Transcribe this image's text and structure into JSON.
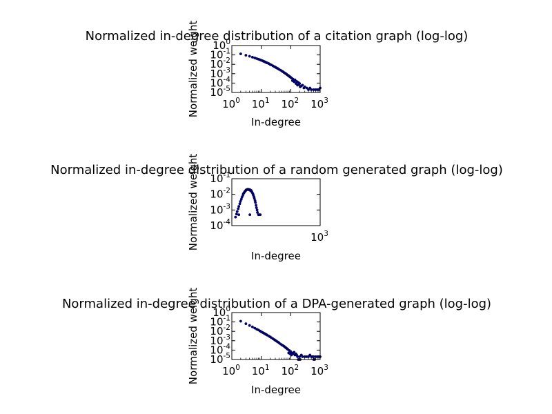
{
  "figure": {
    "background": "#ffffff",
    "marker_color": "#000080"
  },
  "chart_data": [
    {
      "type": "scatter",
      "title": "Normalized in-degree distribution of a citation graph (log-log)",
      "xlabel": "In-degree",
      "ylabel": "Normalized weight",
      "xscale": "log",
      "yscale": "log",
      "xlim": [
        1,
        1000
      ],
      "ylim": [
        1e-05,
        1
      ],
      "x_ticks": [
        {
          "base": "10",
          "exp": "0",
          "value": 1
        },
        {
          "base": "10",
          "exp": "1",
          "value": 10
        },
        {
          "base": "10",
          "exp": "2",
          "value": 100
        },
        {
          "base": "10",
          "exp": "3",
          "value": 1000
        }
      ],
      "y_ticks": [
        {
          "base": "10",
          "exp": "0",
          "value": 1
        },
        {
          "base": "10",
          "exp": "-1",
          "value": 0.1
        },
        {
          "base": "10",
          "exp": "-2",
          "value": 0.01
        },
        {
          "base": "10",
          "exp": "-3",
          "value": 0.001
        },
        {
          "base": "10",
          "exp": "-4",
          "value": 0.0001
        },
        {
          "base": "10",
          "exp": "-5",
          "value": 1e-05
        }
      ],
      "grid": false,
      "points": [
        [
          2,
          0.13
        ],
        [
          3,
          0.092
        ],
        [
          4,
          0.072
        ],
        [
          5,
          0.058
        ],
        [
          6,
          0.048
        ],
        [
          7,
          0.041
        ],
        [
          8,
          0.035
        ],
        [
          9,
          0.031
        ],
        [
          10,
          0.027
        ],
        [
          11,
          0.024
        ],
        [
          12,
          0.021
        ],
        [
          13,
          0.019
        ],
        [
          14,
          0.017
        ],
        [
          15,
          0.015
        ],
        [
          16,
          0.014
        ],
        [
          18,
          0.012
        ],
        [
          20,
          0.0098
        ],
        [
          22,
          0.0085
        ],
        [
          25,
          0.0068
        ],
        [
          28,
          0.0056
        ],
        [
          30,
          0.005
        ],
        [
          33,
          0.0042
        ],
        [
          36,
          0.0036
        ],
        [
          40,
          0.0029
        ],
        [
          45,
          0.0024
        ],
        [
          50,
          0.0019
        ],
        [
          55,
          0.0016
        ],
        [
          60,
          0.0013
        ],
        [
          65,
          0.0011
        ],
        [
          70,
          0.00095
        ],
        [
          75,
          0.0008
        ],
        [
          80,
          0.00068
        ],
        [
          85,
          0.0006
        ],
        [
          90,
          0.00052
        ],
        [
          95,
          0.00046
        ],
        [
          100,
          0.0004
        ],
        [
          110,
          0.00032
        ],
        [
          115,
          0.00018
        ],
        [
          120,
          0.00026
        ],
        [
          130,
          0.00014
        ],
        [
          140,
          0.00022
        ],
        [
          150,
          9e-05
        ],
        [
          160,
          0.00015
        ],
        [
          170,
          6e-05
        ],
        [
          180,
          0.00012
        ],
        [
          190,
          7e-05
        ],
        [
          200,
          9e-05
        ],
        [
          210,
          4e-05
        ],
        [
          230,
          5e-05
        ],
        [
          250,
          6e-05
        ],
        [
          280,
          3e-05
        ],
        [
          300,
          4e-05
        ],
        [
          350,
          3e-05
        ],
        [
          400,
          2e-05
        ],
        [
          450,
          3e-05
        ],
        [
          500,
          2e-05
        ],
        [
          600,
          2e-05
        ],
        [
          700,
          2e-05
        ],
        [
          800,
          2e-05
        ],
        [
          900,
          2e-05
        ],
        [
          1000,
          3e-05
        ]
      ]
    },
    {
      "type": "scatter",
      "title": "Normalized in-degree distribution of a random generated graph (log-log)",
      "xlabel": "In-degree",
      "ylabel": "Normalized weight",
      "xscale": "log",
      "yscale": "log",
      "xlim": [
        100,
        1000
      ],
      "ylim": [
        0.0001,
        0.1
      ],
      "x_ticks": [
        {
          "base": "10",
          "exp": "3",
          "value": 1000
        }
      ],
      "y_ticks": [
        {
          "base": "10",
          "exp": "-1",
          "value": 0.1
        },
        {
          "base": "10",
          "exp": "-2",
          "value": 0.01
        },
        {
          "base": "10",
          "exp": "-3",
          "value": 0.001
        },
        {
          "base": "10",
          "exp": "-4",
          "value": 0.0001
        }
      ],
      "grid": false,
      "points": [
        [
          110,
          0.00035
        ],
        [
          113,
          0.00055
        ],
        [
          115,
          0.0008
        ],
        [
          118,
          0.0012
        ],
        [
          120,
          0.0017
        ],
        [
          123,
          0.0025
        ],
        [
          125,
          0.0035
        ],
        [
          128,
          0.0048
        ],
        [
          130,
          0.0065
        ],
        [
          133,
          0.0085
        ],
        [
          135,
          0.011
        ],
        [
          138,
          0.013
        ],
        [
          140,
          0.015
        ],
        [
          143,
          0.017
        ],
        [
          145,
          0.019
        ],
        [
          148,
          0.02
        ],
        [
          150,
          0.021
        ],
        [
          152,
          0.02
        ],
        [
          155,
          0.021
        ],
        [
          158,
          0.019
        ],
        [
          160,
          0.02
        ],
        [
          163,
          0.017
        ],
        [
          165,
          0.018
        ],
        [
          168,
          0.015
        ],
        [
          170,
          0.013
        ],
        [
          173,
          0.011
        ],
        [
          175,
          0.009
        ],
        [
          178,
          0.007
        ],
        [
          180,
          0.0055
        ],
        [
          183,
          0.004
        ],
        [
          185,
          0.003
        ],
        [
          188,
          0.002
        ],
        [
          190,
          0.0014
        ],
        [
          193,
          0.001
        ],
        [
          195,
          0.0007
        ],
        [
          200,
          0.0005
        ],
        [
          205,
          0.0005
        ],
        [
          210,
          0.0005
        ],
        [
          120,
          0.0005
        ],
        [
          160,
          0.0005
        ]
      ]
    },
    {
      "type": "scatter",
      "title": "Normalized in-degree distribution of a DPA-generated graph (log-log)",
      "xlabel": "In-degree",
      "ylabel": "Normalized weight",
      "xscale": "log",
      "yscale": "log",
      "xlim": [
        1,
        1000
      ],
      "ylim": [
        1e-05,
        1
      ],
      "x_ticks": [
        {
          "base": "10",
          "exp": "0",
          "value": 1
        },
        {
          "base": "10",
          "exp": "1",
          "value": 10
        },
        {
          "base": "10",
          "exp": "2",
          "value": 100
        },
        {
          "base": "10",
          "exp": "3",
          "value": 1000
        }
      ],
      "y_ticks": [
        {
          "base": "10",
          "exp": "0",
          "value": 1
        },
        {
          "base": "10",
          "exp": "-1",
          "value": 0.1
        },
        {
          "base": "10",
          "exp": "-2",
          "value": 0.01
        },
        {
          "base": "10",
          "exp": "-3",
          "value": 0.001
        },
        {
          "base": "10",
          "exp": "-4",
          "value": 0.0001
        },
        {
          "base": "10",
          "exp": "-5",
          "value": 1e-05
        }
      ],
      "grid": false,
      "points": [
        [
          2,
          0.12
        ],
        [
          3,
          0.065
        ],
        [
          4,
          0.042
        ],
        [
          5,
          0.03
        ],
        [
          6,
          0.022
        ],
        [
          7,
          0.017
        ],
        [
          8,
          0.014
        ],
        [
          9,
          0.011
        ],
        [
          10,
          0.009
        ],
        [
          11,
          0.0077
        ],
        [
          12,
          0.0066
        ],
        [
          13,
          0.0057
        ],
        [
          14,
          0.005
        ],
        [
          15,
          0.0044
        ],
        [
          16,
          0.0039
        ],
        [
          18,
          0.0031
        ],
        [
          20,
          0.0026
        ],
        [
          22,
          0.0021
        ],
        [
          25,
          0.0016
        ],
        [
          28,
          0.0013
        ],
        [
          30,
          0.0011
        ],
        [
          33,
          0.0009
        ],
        [
          36,
          0.00075
        ],
        [
          40,
          0.0006
        ],
        [
          45,
          0.00045
        ],
        [
          50,
          0.00035
        ],
        [
          55,
          0.0003
        ],
        [
          60,
          0.00025
        ],
        [
          65,
          0.0002
        ],
        [
          70,
          0.00017
        ],
        [
          75,
          0.00014
        ],
        [
          80,
          0.00012
        ],
        [
          90,
          9e-05
        ],
        [
          100,
          7e-05
        ],
        [
          110,
          5e-05
        ],
        [
          120,
          4e-05
        ],
        [
          130,
          6e-05
        ],
        [
          140,
          3e-05
        ],
        [
          150,
          4e-05
        ],
        [
          160,
          3e-05
        ],
        [
          170,
          2e-05
        ],
        [
          200,
          2e-05
        ],
        [
          230,
          3e-05
        ],
        [
          250,
          2e-05
        ],
        [
          300,
          2e-05
        ],
        [
          350,
          2e-05
        ],
        [
          400,
          2e-05
        ],
        [
          450,
          3e-05
        ],
        [
          500,
          2e-05
        ],
        [
          550,
          2e-05
        ],
        [
          600,
          2e-05
        ],
        [
          700,
          2e-05
        ],
        [
          800,
          2e-05
        ],
        [
          900,
          2e-05
        ],
        [
          1000,
          2e-05
        ],
        [
          85,
          5e-05
        ],
        [
          95,
          4e-05
        ],
        [
          105,
          3e-05
        ],
        [
          180,
          1e-05
        ],
        [
          190,
          1e-05
        ],
        [
          210,
          1e-05
        ],
        [
          600,
          1e-05
        ],
        [
          650,
          1e-05
        ]
      ]
    }
  ]
}
